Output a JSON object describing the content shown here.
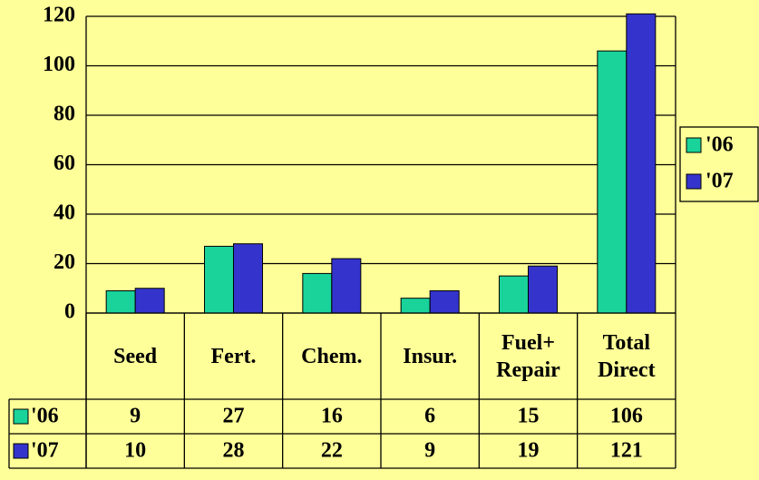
{
  "chart_data": {
    "type": "bar",
    "categories": [
      "Seed",
      "Fert.",
      "Chem.",
      "Insur.",
      "Fuel+ Repair",
      "Total Direct"
    ],
    "series": [
      {
        "name": "'06",
        "color": "#19d39a",
        "values": [
          9,
          27,
          16,
          6,
          15,
          106
        ]
      },
      {
        "name": "'07",
        "color": "#3434cc",
        "values": [
          10,
          28,
          22,
          9,
          19,
          121
        ]
      }
    ],
    "ylim": [
      0,
      120
    ],
    "yticks": [
      0,
      20,
      40,
      60,
      80,
      100,
      120
    ],
    "grid": true,
    "legend": "right",
    "data_table": true
  }
}
